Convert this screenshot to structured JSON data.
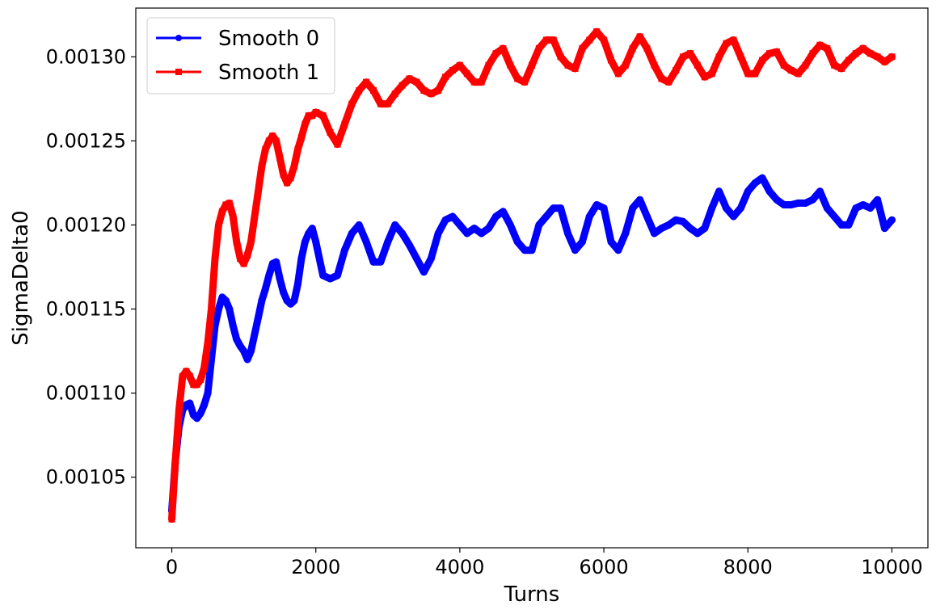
{
  "chart_data": {
    "type": "line",
    "xlabel": "Turns",
    "ylabel": "SigmaDelta0",
    "xlim": [
      -500,
      10500
    ],
    "ylim": [
      0.001008,
      0.001329
    ],
    "xticks": [
      0,
      2000,
      4000,
      6000,
      8000,
      10000
    ],
    "xtick_labels": [
      "0",
      "2000",
      "4000",
      "6000",
      "8000",
      "10000"
    ],
    "yticks": [
      0.00105,
      0.0011,
      0.00115,
      0.0012,
      0.00125,
      0.0013
    ],
    "ytick_labels": [
      "0.00105",
      "0.00110",
      "0.00115",
      "0.00120",
      "0.00125",
      "0.00130"
    ],
    "grid": false,
    "legend": "top-left",
    "series": [
      {
        "name": "Smooth 0",
        "color": "#0000ff",
        "marker": "circle",
        "x": [
          0,
          50,
          100,
          150,
          200,
          250,
          300,
          350,
          400,
          450,
          500,
          550,
          600,
          650,
          700,
          750,
          800,
          850,
          900,
          950,
          1000,
          1050,
          1100,
          1150,
          1200,
          1250,
          1300,
          1350,
          1400,
          1450,
          1500,
          1550,
          1600,
          1650,
          1700,
          1750,
          1800,
          1850,
          1900,
          1950,
          2000,
          2100,
          2200,
          2300,
          2400,
          2500,
          2600,
          2700,
          2800,
          2900,
          3000,
          3100,
          3200,
          3300,
          3400,
          3500,
          3600,
          3700,
          3800,
          3900,
          4000,
          4100,
          4200,
          4300,
          4400,
          4500,
          4600,
          4700,
          4800,
          4900,
          5000,
          5100,
          5200,
          5300,
          5400,
          5500,
          5600,
          5700,
          5800,
          5900,
          6000,
          6100,
          6200,
          6300,
          6400,
          6500,
          6600,
          6700,
          6800,
          6900,
          7000,
          7100,
          7200,
          7300,
          7400,
          7500,
          7600,
          7700,
          7800,
          7900,
          8000,
          8100,
          8200,
          8300,
          8400,
          8500,
          8600,
          8700,
          8800,
          8900,
          9000,
          9100,
          9200,
          9300,
          9400,
          9500,
          9600,
          9700,
          9800,
          9900,
          10000
        ],
        "y": [
          0.00103,
          0.00106,
          0.00108,
          0.00109,
          0.001093,
          0.001094,
          0.001087,
          0.001085,
          0.001088,
          0.001093,
          0.0011,
          0.00112,
          0.00114,
          0.00115,
          0.001157,
          0.001155,
          0.00115,
          0.00114,
          0.001132,
          0.001128,
          0.001125,
          0.00112,
          0.001125,
          0.001135,
          0.001145,
          0.001155,
          0.001162,
          0.00117,
          0.001177,
          0.001178,
          0.001168,
          0.00116,
          0.001155,
          0.001153,
          0.001155,
          0.001165,
          0.00118,
          0.00119,
          0.001195,
          0.001198,
          0.00119,
          0.00117,
          0.001168,
          0.00117,
          0.001185,
          0.001195,
          0.0012,
          0.00119,
          0.001178,
          0.001178,
          0.00119,
          0.0012,
          0.001195,
          0.001188,
          0.00118,
          0.001172,
          0.00118,
          0.001195,
          0.001203,
          0.001205,
          0.0012,
          0.001195,
          0.001198,
          0.001195,
          0.001198,
          0.001205,
          0.001208,
          0.0012,
          0.00119,
          0.001185,
          0.001185,
          0.0012,
          0.001205,
          0.00121,
          0.00121,
          0.001195,
          0.001185,
          0.00119,
          0.001205,
          0.001212,
          0.00121,
          0.00119,
          0.001185,
          0.001195,
          0.00121,
          0.001215,
          0.001205,
          0.001195,
          0.001198,
          0.0012,
          0.001203,
          0.001202,
          0.001198,
          0.001195,
          0.001198,
          0.00121,
          0.00122,
          0.00121,
          0.001205,
          0.00121,
          0.00122,
          0.001225,
          0.001228,
          0.00122,
          0.001215,
          0.001212,
          0.001212,
          0.001213,
          0.001213,
          0.001215,
          0.00122,
          0.00121,
          0.001205,
          0.0012,
          0.0012,
          0.00121,
          0.001212,
          0.00121,
          0.001215,
          0.001198,
          0.001203
        ]
      },
      {
        "name": "Smooth 1",
        "color": "#ff0000",
        "marker": "square",
        "x": [
          0,
          50,
          100,
          150,
          200,
          250,
          300,
          350,
          400,
          450,
          500,
          550,
          600,
          650,
          700,
          750,
          800,
          850,
          900,
          950,
          1000,
          1050,
          1100,
          1150,
          1200,
          1250,
          1300,
          1350,
          1400,
          1450,
          1500,
          1550,
          1600,
          1650,
          1700,
          1750,
          1800,
          1850,
          1900,
          1950,
          2000,
          2100,
          2200,
          2300,
          2400,
          2500,
          2600,
          2700,
          2800,
          2900,
          3000,
          3100,
          3200,
          3300,
          3400,
          3500,
          3600,
          3700,
          3800,
          3900,
          4000,
          4100,
          4200,
          4300,
          4400,
          4500,
          4600,
          4700,
          4800,
          4900,
          5000,
          5100,
          5200,
          5300,
          5400,
          5500,
          5600,
          5700,
          5800,
          5900,
          6000,
          6100,
          6200,
          6300,
          6400,
          6500,
          6600,
          6700,
          6800,
          6900,
          7000,
          7100,
          7200,
          7300,
          7400,
          7500,
          7600,
          7700,
          7800,
          7900,
          8000,
          8100,
          8200,
          8300,
          8400,
          8500,
          8600,
          8700,
          8800,
          8900,
          9000,
          9100,
          9200,
          9300,
          9400,
          9500,
          9600,
          9700,
          9800,
          9900,
          10000
        ],
        "y": [
          0.001025,
          0.00106,
          0.00109,
          0.00111,
          0.001113,
          0.00111,
          0.001105,
          0.001105,
          0.001108,
          0.001115,
          0.00113,
          0.00115,
          0.00118,
          0.0012,
          0.001208,
          0.001212,
          0.001213,
          0.001205,
          0.00119,
          0.00118,
          0.001177,
          0.001182,
          0.00119,
          0.001205,
          0.00122,
          0.001235,
          0.001245,
          0.00125,
          0.001253,
          0.00125,
          0.00124,
          0.00123,
          0.001225,
          0.001228,
          0.001235,
          0.001245,
          0.001252,
          0.00126,
          0.001265,
          0.001265,
          0.001267,
          0.001265,
          0.001255,
          0.001248,
          0.00126,
          0.001272,
          0.00128,
          0.001285,
          0.00128,
          0.001272,
          0.001272,
          0.001278,
          0.001283,
          0.001287,
          0.001285,
          0.00128,
          0.001278,
          0.00128,
          0.001288,
          0.001292,
          0.001295,
          0.00129,
          0.001285,
          0.001285,
          0.001295,
          0.001302,
          0.001305,
          0.001295,
          0.001287,
          0.001285,
          0.001295,
          0.001305,
          0.00131,
          0.00131,
          0.0013,
          0.001295,
          0.001293,
          0.001305,
          0.00131,
          0.001315,
          0.00131,
          0.001298,
          0.00129,
          0.001295,
          0.001305,
          0.001312,
          0.001305,
          0.001295,
          0.001287,
          0.001285,
          0.001292,
          0.0013,
          0.001302,
          0.001295,
          0.001288,
          0.00129,
          0.0013,
          0.001308,
          0.00131,
          0.0013,
          0.00129,
          0.00129,
          0.001298,
          0.001302,
          0.001303,
          0.001295,
          0.001292,
          0.00129,
          0.001295,
          0.001302,
          0.001307,
          0.001305,
          0.001295,
          0.001293,
          0.001298,
          0.001302,
          0.001305,
          0.001302,
          0.0013,
          0.001297,
          0.0013
        ]
      }
    ]
  }
}
